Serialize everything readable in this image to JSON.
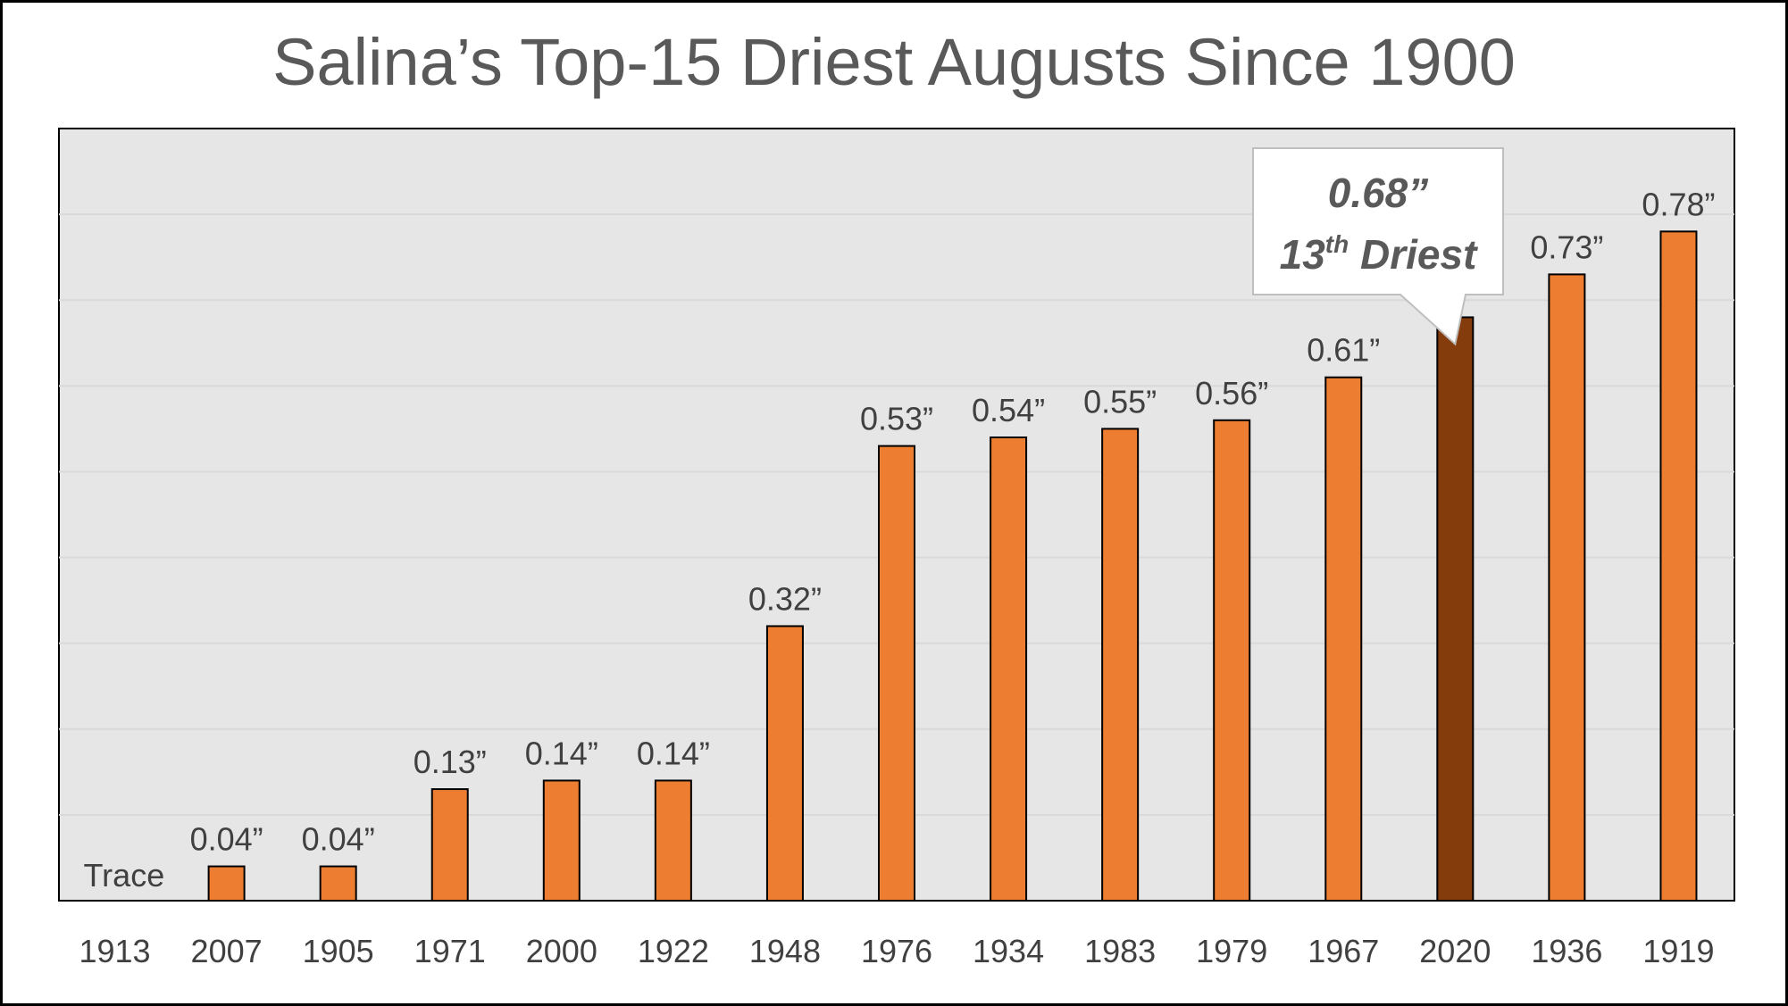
{
  "chart_data": {
    "type": "bar",
    "title": "Salina’s Top-15 Driest Augusts Since 1900",
    "xlabel": "",
    "ylabel": "",
    "ylim": [
      0,
      0.9
    ],
    "grid": true,
    "categories": [
      "1913",
      "2007",
      "1905",
      "1971",
      "2000",
      "1922",
      "1948",
      "1976",
      "1934",
      "1983",
      "1979",
      "1967",
      "2020",
      "1936",
      "1919"
    ],
    "values": [
      0,
      0.04,
      0.04,
      0.13,
      0.14,
      0.14,
      0.32,
      0.53,
      0.54,
      0.55,
      0.56,
      0.61,
      0.68,
      0.73,
      0.78
    ],
    "data_labels": [
      "Trace",
      "0.04”",
      "0.04”",
      "0.13”",
      "0.14”",
      "0.14”",
      "0.32”",
      "0.53”",
      "0.54”",
      "0.55”",
      "0.56”",
      "0.61”",
      "",
      "0.73”",
      "0.78”"
    ],
    "highlight_index": 12,
    "colors": {
      "bar": "#ED7D31",
      "highlight_bar": "#843C0C",
      "plot_background": "#E7E6E6",
      "gridline": "#D9D9D9",
      "text": "#404040"
    },
    "callout": {
      "value": "0.68”",
      "rank_number": "13",
      "rank_suffix": "th",
      "rank_text": " Driest"
    }
  }
}
